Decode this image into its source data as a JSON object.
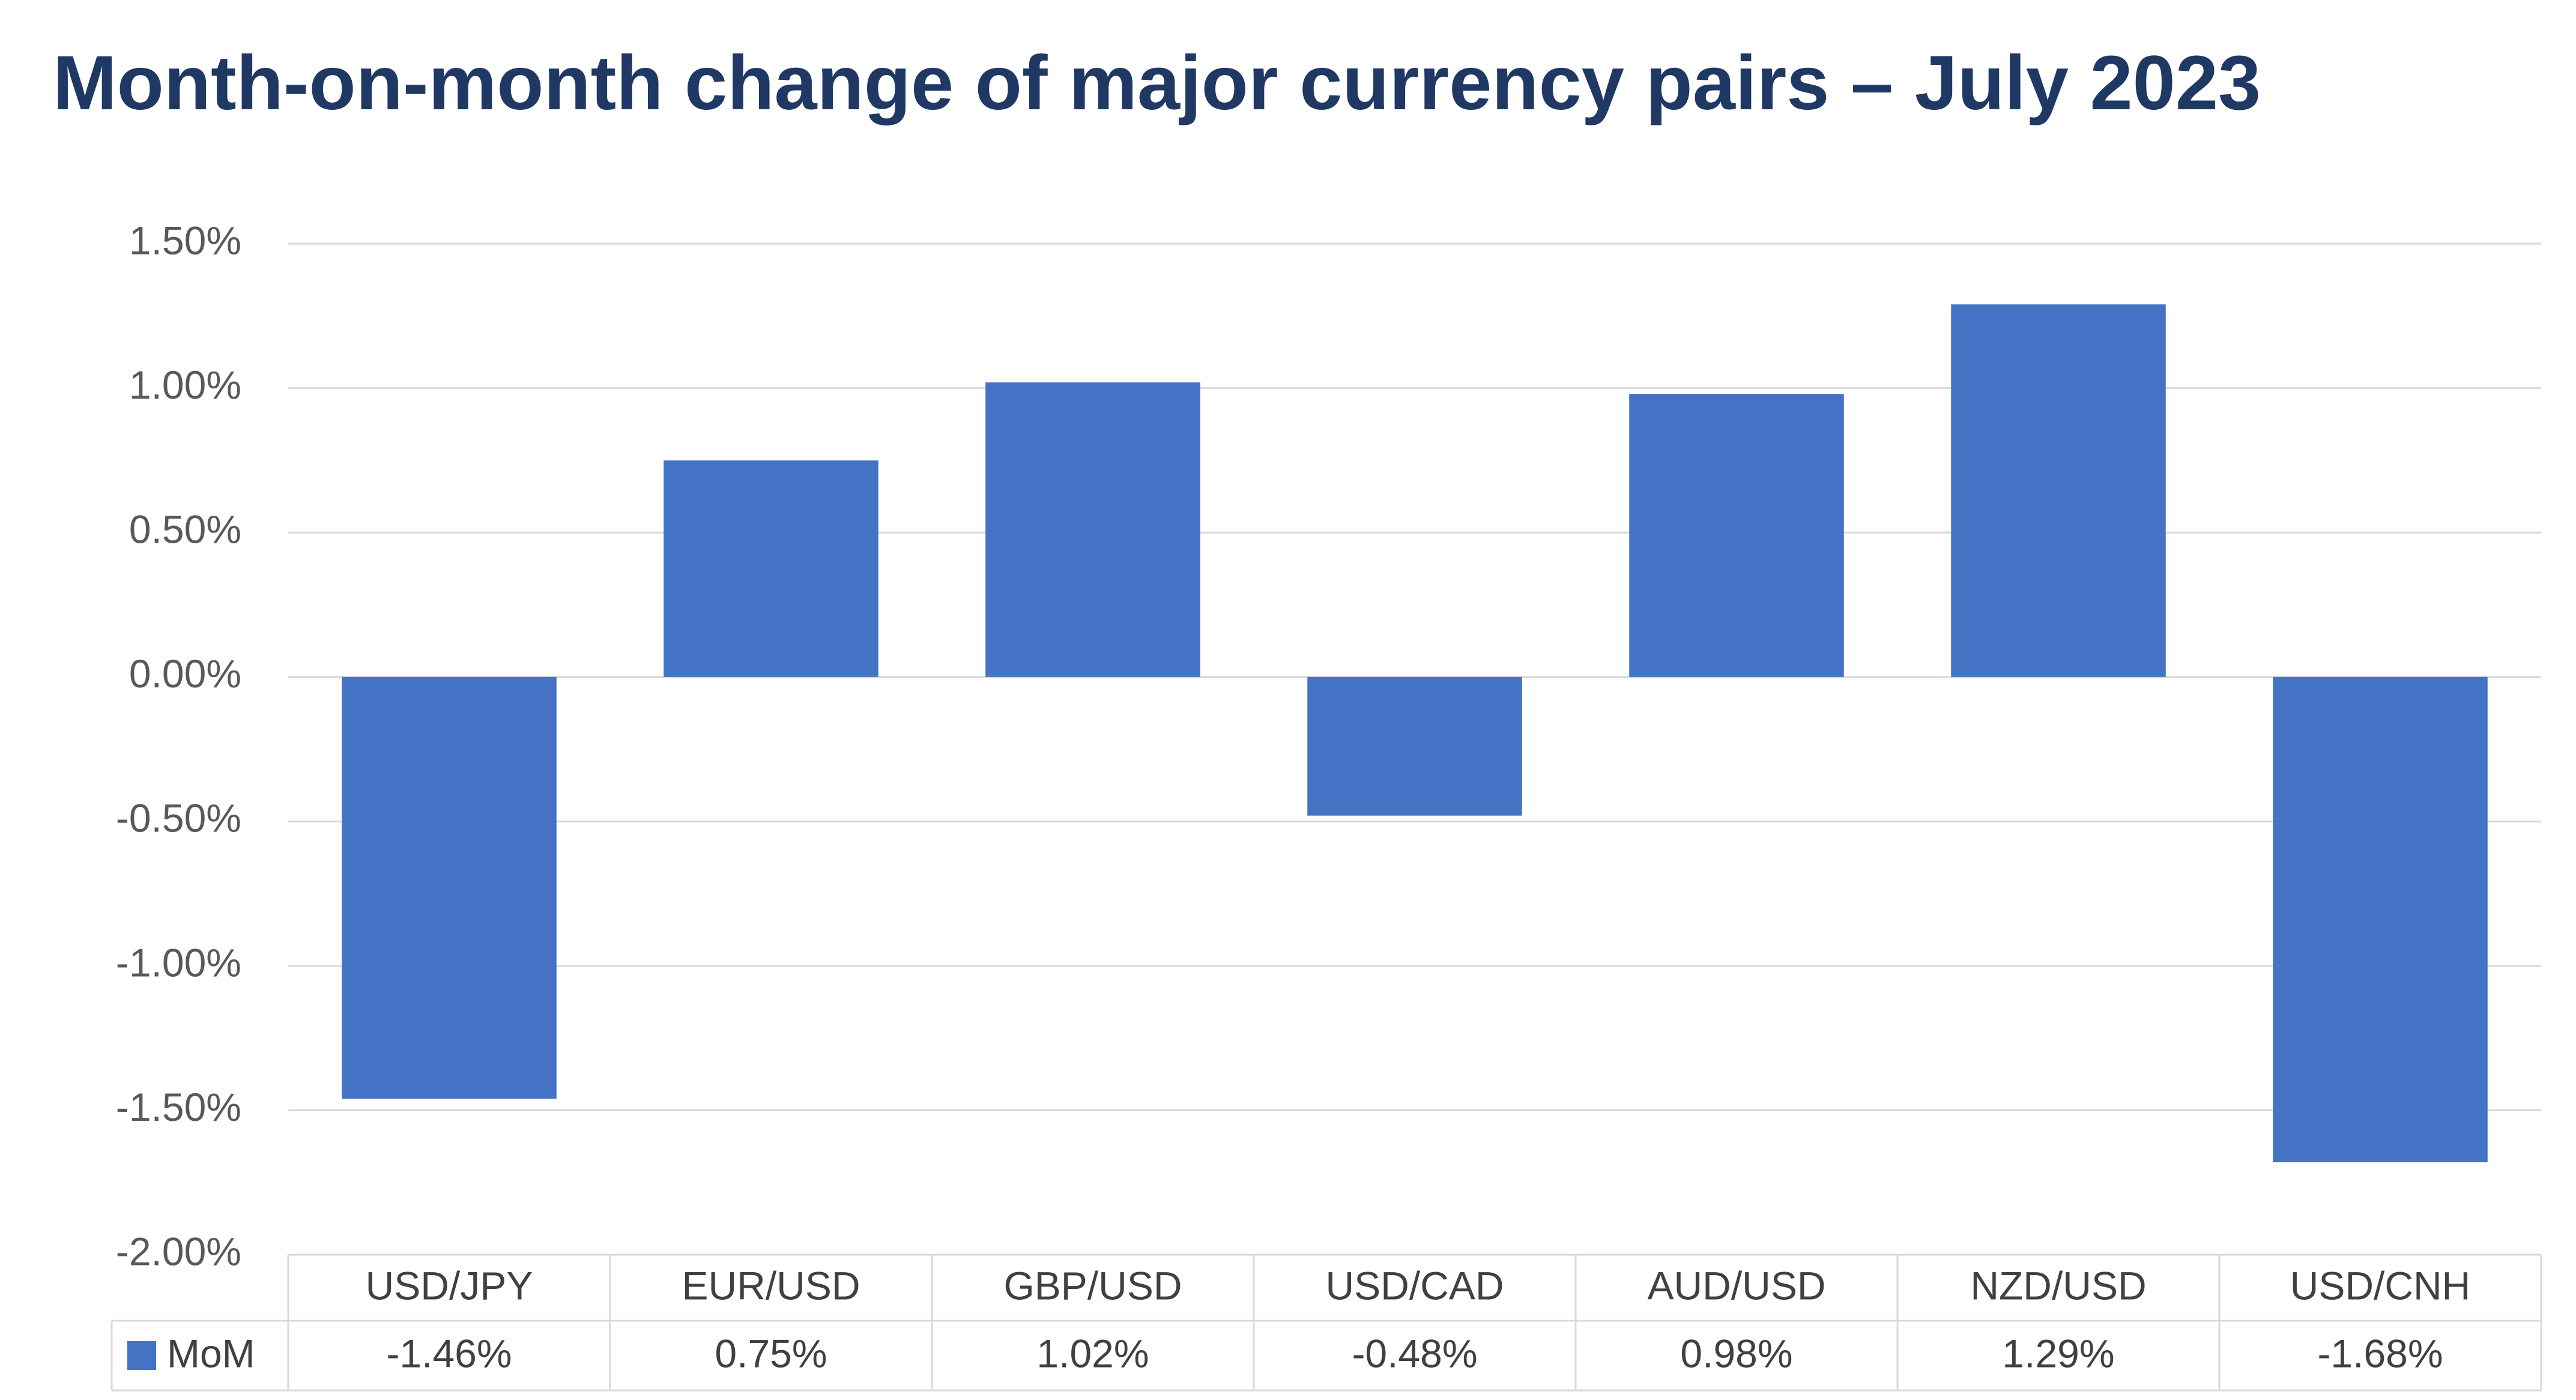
{
  "chart_data": {
    "type": "bar",
    "title": "Month-on-month change of major currency pairs – July 2023",
    "categories": [
      "USD/JPY",
      "EUR/USD",
      "GBP/USD",
      "USD/CAD",
      "AUD/USD",
      "NZD/USD",
      "USD/CNH"
    ],
    "series": [
      {
        "name": "MoM",
        "values": [
          -1.46,
          0.75,
          1.02,
          -0.48,
          0.98,
          1.29,
          -1.68
        ],
        "labels": [
          "-1.46%",
          "0.75%",
          "1.02%",
          "-0.48%",
          "0.98%",
          "1.29%",
          "-1.68%"
        ],
        "color": "#4472c4"
      }
    ],
    "ylim": [
      -2.0,
      1.5
    ],
    "yticks": [
      1.5,
      1.0,
      0.5,
      0.0,
      -0.5,
      -1.0,
      -1.5,
      -2.0
    ],
    "ytick_labels": [
      "1.50%",
      "1.00%",
      "0.50%",
      "0.00%",
      "-0.50%",
      "-1.00%",
      "-1.50%",
      "-2.00%"
    ],
    "xlabel": "",
    "ylabel": "",
    "grid": true,
    "data_table": true,
    "gridline_color": "#d9d9d9"
  }
}
